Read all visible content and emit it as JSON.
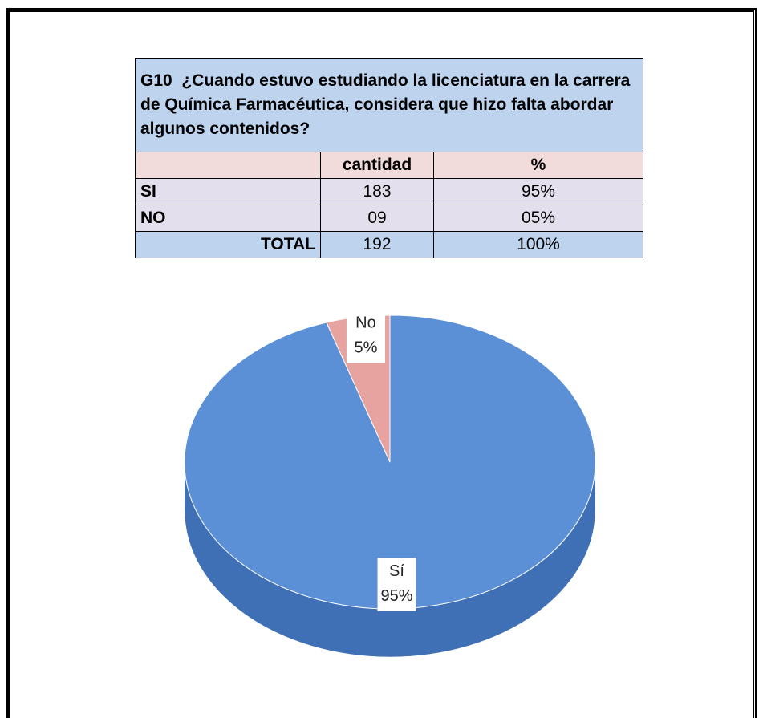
{
  "table": {
    "title": "G10  ¿Cuando estuvo estudiando la licenciatura en la carrera de Química Farmacéutica, considera que hizo falta abordar algunos contenidos?",
    "header": [
      "",
      "cantidad",
      "%"
    ],
    "rows": [
      [
        "SI",
        "183",
        "95%"
      ],
      [
        "NO",
        "09",
        "05%"
      ],
      [
        "TOTAL",
        "192",
        "100%"
      ]
    ]
  },
  "chart_data": {
    "type": "pie",
    "categories": [
      "Sí",
      "No"
    ],
    "values": [
      95,
      5
    ],
    "value_labels": [
      "95%",
      "5%"
    ],
    "colors": [
      "#5b8fd6",
      "#e6a3a0"
    ],
    "side_colors": [
      "#3f6fb4",
      "#b97a77"
    ]
  }
}
